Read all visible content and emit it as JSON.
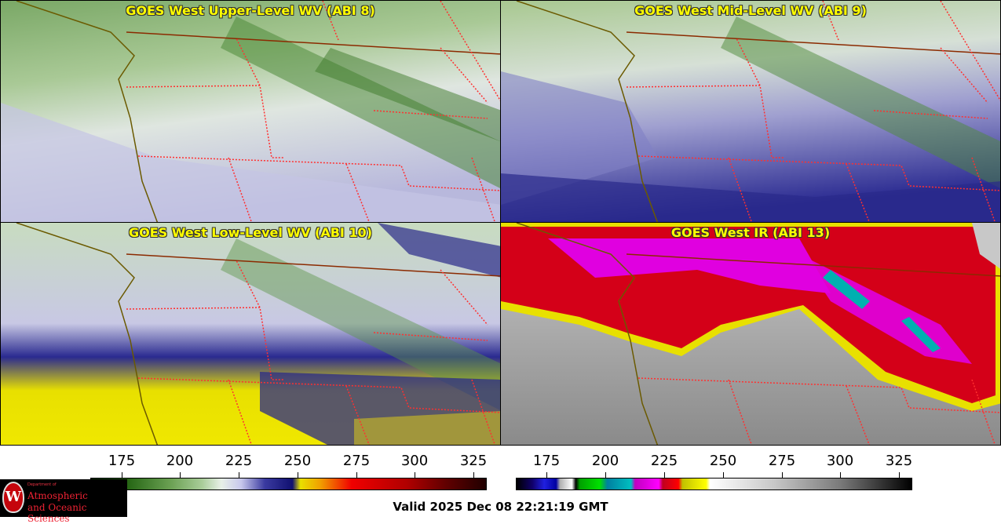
{
  "panels": [
    {
      "title": "GOES West Upper-Level WV (ABI 8)"
    },
    {
      "title": "GOES West Mid-Level WV (ABI 9)"
    },
    {
      "title": "GOES West Low-Level WV (ABI 10)"
    },
    {
      "title": "GOES West IR (ABI 13)"
    }
  ],
  "colorbars": {
    "wv": {
      "ticks": [
        "175",
        "200",
        "225",
        "250",
        "275",
        "300",
        "325"
      ]
    },
    "ir": {
      "ticks": [
        "175",
        "200",
        "225",
        "250",
        "275",
        "300",
        "325"
      ]
    }
  },
  "footer": {
    "valid_time": "Valid 2025 Dec 08 22:21:19 GMT"
  },
  "logo": {
    "dept": "Department of",
    "line1": "Atmospheric",
    "line2": "and Oceanic Sciences",
    "seal_letter": "W"
  },
  "colors": {
    "title": "#ffff00",
    "border_state": "#ff3030",
    "border_country": "#8b2a00",
    "coast": "#6b5a00"
  }
}
